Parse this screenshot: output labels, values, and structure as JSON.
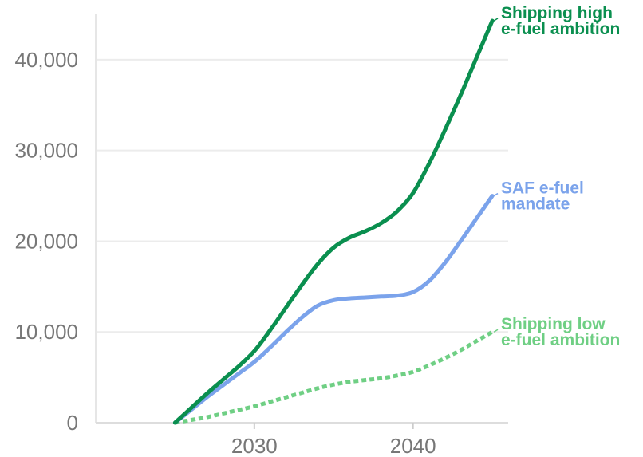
{
  "chart_data": {
    "type": "line",
    "title": "",
    "xlabel": "",
    "ylabel": "",
    "xlim": [
      2020.0,
      2046.0
    ],
    "ylim": [
      0,
      45000
    ],
    "grid": true,
    "x_ticks": [
      {
        "value": 2030,
        "label": "2030"
      },
      {
        "value": 2040,
        "label": "2040"
      }
    ],
    "y_ticks": [
      {
        "value": 0,
        "label": "0"
      },
      {
        "value": 10000,
        "label": "10,000"
      },
      {
        "value": 20000,
        "label": "20,000"
      },
      {
        "value": 30000,
        "label": "30,000"
      },
      {
        "value": 40000,
        "label": "40,000"
      }
    ],
    "series": [
      {
        "name": "Shipping high e-fuel ambition",
        "label_lines": [
          "Shipping high",
          "e-fuel ambition"
        ],
        "color": "#0a8f4f",
        "style": "solid",
        "x": [
          2025,
          2026,
          2027,
          2028,
          2029,
          2030,
          2031,
          2032,
          2033,
          2034,
          2035,
          2036,
          2037,
          2038,
          2039,
          2040,
          2041,
          2042,
          2043,
          2044,
          2045
        ],
        "y": [
          0,
          1600,
          3200,
          4700,
          6200,
          7900,
          10200,
          12700,
          15200,
          17500,
          19300,
          20400,
          21100,
          22000,
          23300,
          25300,
          28500,
          32200,
          36100,
          40200,
          44300
        ]
      },
      {
        "name": "SAF e-fuel mandate",
        "label_lines": [
          "SAF e-fuel",
          "mandate"
        ],
        "color": "#7ba3eb",
        "style": "solid",
        "x": [
          2025,
          2026,
          2027,
          2028,
          2029,
          2030,
          2031,
          2032,
          2033,
          2034,
          2035,
          2036,
          2037,
          2038,
          2039,
          2040,
          2041,
          2042,
          2043,
          2044,
          2045
        ],
        "y": [
          0,
          1400,
          2800,
          4100,
          5400,
          6700,
          8300,
          10000,
          11600,
          12900,
          13500,
          13700,
          13800,
          13900,
          14000,
          14400,
          15600,
          17600,
          20000,
          22500,
          25000
        ]
      },
      {
        "name": "Shipping low e-fuel ambition",
        "label_lines": [
          "Shipping low",
          "e-fuel ambition"
        ],
        "color": "#6fcf84",
        "style": "dotted",
        "x": [
          2025,
          2026,
          2027,
          2028,
          2029,
          2030,
          2031,
          2032,
          2033,
          2034,
          2035,
          2036,
          2037,
          2038,
          2039,
          2040,
          2041,
          2042,
          2043,
          2044,
          2045
        ],
        "y": [
          0,
          300,
          600,
          1000,
          1400,
          1800,
          2300,
          2800,
          3300,
          3800,
          4200,
          4500,
          4700,
          4900,
          5200,
          5600,
          6300,
          7100,
          8000,
          9000,
          10000
        ]
      }
    ]
  }
}
